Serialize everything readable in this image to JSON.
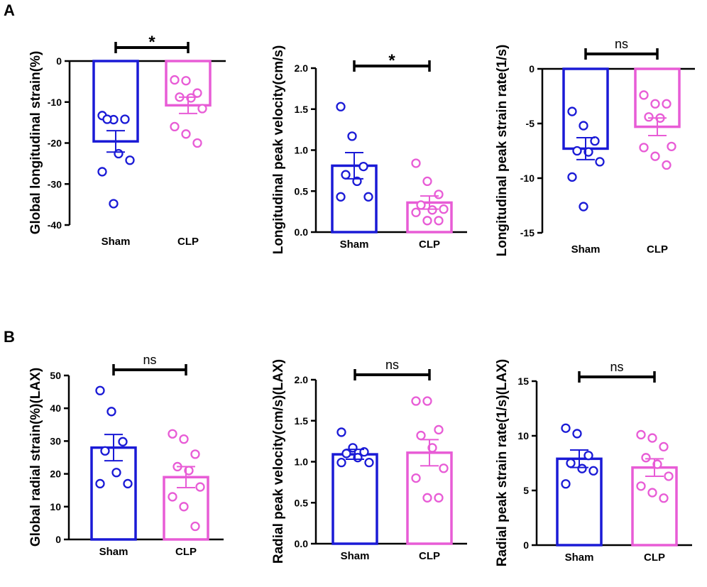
{
  "figure": {
    "panel_labels": [
      "A",
      "B"
    ],
    "colors": {
      "sham": "#1a1ad6",
      "clp": "#e85cd6",
      "axis": "#000000"
    }
  },
  "chart_data": [
    {
      "id": "gls",
      "type": "bar",
      "ylabel": "Global longitudinal strain(%)",
      "categories": [
        "Sham",
        "CLP"
      ],
      "ylim": [
        -40,
        0
      ],
      "yticks": [
        0,
        -10,
        -20,
        -30,
        -40
      ],
      "ytick_labels": [
        "0",
        "-10",
        "-20",
        "-30",
        "-40"
      ],
      "x_axis_at": "top",
      "means": [
        -19.6,
        -10.8
      ],
      "sem": [
        2.6,
        2.0
      ],
      "points": [
        [
          -13.3,
          -14.3,
          -14.2,
          -14.2,
          -22.6,
          -24.2,
          -27.0,
          -34.8
        ],
        [
          -4.6,
          -4.8,
          -7.8,
          -8.8,
          -9.0,
          -11.6,
          -16.0,
          -17.8,
          -20.0
        ]
      ],
      "significance": "*"
    },
    {
      "id": "lpv",
      "type": "bar",
      "ylabel": "Longitudinal peak velocity(cm/s)",
      "categories": [
        "Sham",
        "CLP"
      ],
      "ylim": [
        0,
        2.0
      ],
      "yticks": [
        0,
        0.5,
        1.0,
        1.5,
        2.0
      ],
      "ytick_labels": [
        "0.0",
        "0.5",
        "1.0",
        "1.5",
        "2.0"
      ],
      "x_axis_at": "bottom",
      "means": [
        0.81,
        0.36
      ],
      "sem": [
        0.16,
        0.08
      ],
      "points": [
        [
          1.53,
          1.17,
          0.8,
          0.7,
          0.62,
          0.43,
          0.43
        ],
        [
          0.84,
          0.62,
          0.46,
          0.33,
          0.27,
          0.28,
          0.24,
          0.14,
          0.14
        ]
      ],
      "significance": "*"
    },
    {
      "id": "lpsr",
      "type": "bar",
      "ylabel": "Longitudinal peak strain rate(1/s)",
      "categories": [
        "Sham",
        "CLP"
      ],
      "ylim": [
        -15,
        0
      ],
      "yticks": [
        0,
        -5,
        -10,
        -15
      ],
      "ytick_labels": [
        "0",
        "-5",
        "-10",
        "-15"
      ],
      "x_axis_at": "top",
      "means": [
        -7.3,
        -5.3
      ],
      "sem": [
        1.0,
        0.8
      ],
      "points": [
        [
          -3.9,
          -5.2,
          -6.6,
          -7.5,
          -7.6,
          -8.5,
          -9.9,
          -12.6
        ],
        [
          -2.4,
          -3.2,
          -3.2,
          -4.4,
          -4.5,
          -7.1,
          -7.2,
          -8.0,
          -8.8
        ]
      ],
      "significance": "ns"
    },
    {
      "id": "grs",
      "type": "bar",
      "ylabel": "Global radial strain(%)(LAX)",
      "categories": [
        "Sham",
        "CLP"
      ],
      "ylim": [
        0,
        50
      ],
      "yticks": [
        0,
        10,
        20,
        30,
        40,
        50
      ],
      "ytick_labels": [
        "0",
        "10",
        "20",
        "30",
        "40",
        "50"
      ],
      "x_axis_at": "bottom",
      "means": [
        28.0,
        19.0
      ],
      "sem": [
        4.0,
        3.2
      ],
      "points": [
        [
          45.4,
          39.0,
          29.8,
          27.0,
          20.4,
          17.0,
          17.0
        ],
        [
          32.2,
          30.6,
          26.0,
          22.2,
          21.0,
          16.0,
          13.0,
          10.0,
          4.0
        ]
      ],
      "significance": "ns"
    },
    {
      "id": "rpv",
      "type": "bar",
      "ylabel": "Radial peak velocity(cm/s)(LAX)",
      "categories": [
        "Sham",
        "CLP"
      ],
      "ylim": [
        0,
        2.0
      ],
      "yticks": [
        0,
        0.5,
        1.0,
        1.5,
        2.0
      ],
      "ytick_labels": [
        "0.0",
        "0.5",
        "1.0",
        "1.5",
        "2.0"
      ],
      "x_axis_at": "bottom",
      "means": [
        1.09,
        1.11
      ],
      "sem": [
        0.06,
        0.16
      ],
      "points": [
        [
          1.36,
          1.17,
          1.12,
          1.1,
          1.05,
          0.99,
          0.99
        ],
        [
          1.74,
          1.74,
          1.39,
          1.32,
          1.17,
          0.92,
          0.8,
          0.56,
          0.56
        ]
      ],
      "significance": "ns"
    },
    {
      "id": "rpsr",
      "type": "bar",
      "ylabel": "Radial peak strain rate(1/s)(LAX)",
      "categories": [
        "Sham",
        "CLP"
      ],
      "ylim": [
        0,
        15
      ],
      "yticks": [
        0,
        5,
        10,
        15
      ],
      "ytick_labels": [
        "0",
        "5",
        "10",
        "15"
      ],
      "x_axis_at": "bottom",
      "means": [
        7.9,
        7.1
      ],
      "sem": [
        0.8,
        0.8
      ],
      "points": [
        [
          10.7,
          10.2,
          8.2,
          7.5,
          7.0,
          6.8,
          5.6
        ],
        [
          10.1,
          9.8,
          9.0,
          8.0,
          7.4,
          6.3,
          5.4,
          4.8,
          4.3
        ]
      ],
      "significance": "ns"
    }
  ]
}
